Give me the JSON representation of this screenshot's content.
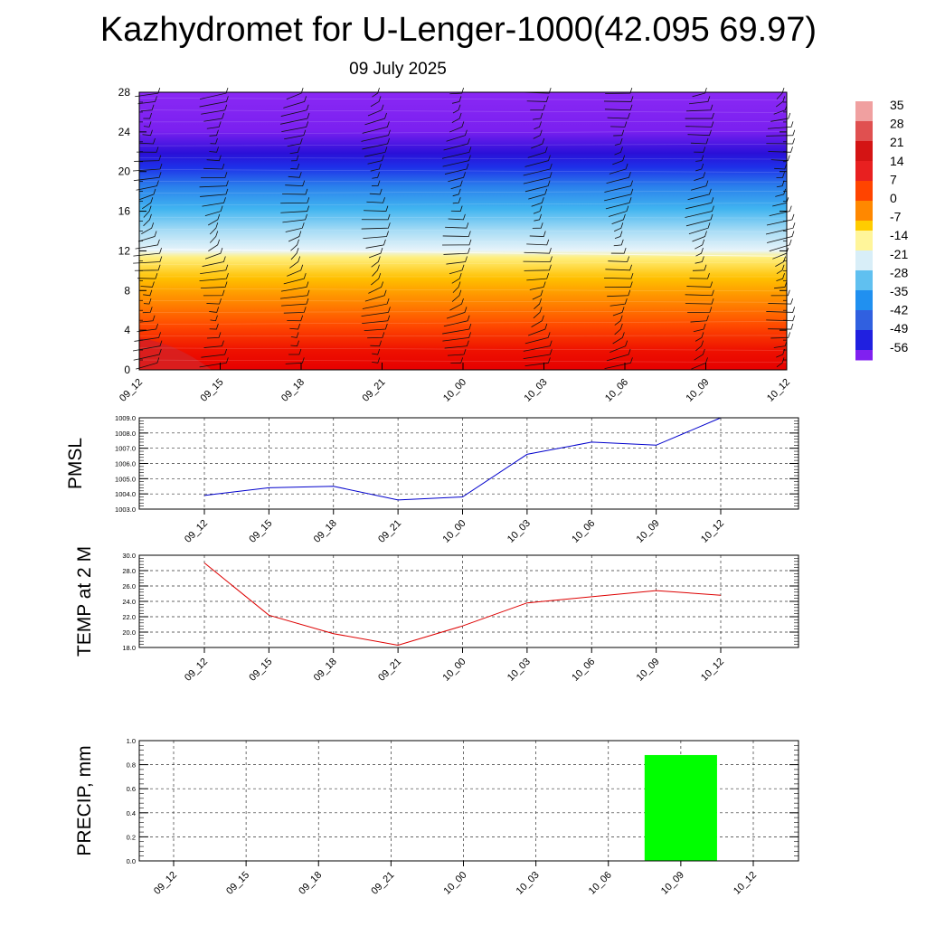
{
  "title": "Kazhydromet for U-Lenger-1000(42.095 69.97)",
  "subtitle": "09 July 2025",
  "time_labels": [
    "09_12",
    "09_15",
    "09_18",
    "09_21",
    "10_00",
    "10_03",
    "10_06",
    "10_09",
    "10_12"
  ],
  "colorbar": {
    "labels": [
      "35",
      "28",
      "21",
      "14",
      "7",
      "0",
      "-7",
      "-14",
      "-21",
      "-28",
      "-35",
      "-42",
      "-49",
      "-56"
    ],
    "colors": [
      "#f0a0a0",
      "#e05050",
      "#d41414",
      "#e82020",
      "#ff4400",
      "#ff8800",
      "#ffcc00",
      "#fff59a",
      "#d8eef8",
      "#60c0f0",
      "#2090f0",
      "#3060e0",
      "#2020e0",
      "#8020f0"
    ]
  },
  "chart_data": [
    {
      "type": "heatmap",
      "title": "",
      "xlabel": "",
      "ylabel": "",
      "x": [
        "09_12",
        "09_15",
        "09_18",
        "09_21",
        "10_00",
        "10_03",
        "10_06",
        "10_09",
        "10_12"
      ],
      "y_ticks": [
        0,
        4,
        8,
        12,
        16,
        20,
        24,
        28
      ],
      "ylim": [
        0,
        28
      ],
      "value_range": [
        -56,
        35
      ],
      "freezing_level": 12
    },
    {
      "type": "line",
      "ylabel": "PMSL",
      "x": [
        "09_12",
        "09_15",
        "09_18",
        "09_21",
        "10_00",
        "10_03",
        "10_06",
        "10_09",
        "10_12"
      ],
      "values": [
        1003.9,
        1004.4,
        1004.5,
        1003.6,
        1003.8,
        1006.6,
        1007.4,
        1007.2,
        1009.0
      ],
      "ylim": [
        1003.0,
        1009.0
      ],
      "y_ticks": [
        "1003.0",
        "1004.0",
        "1005.0",
        "1006.0",
        "1007.0",
        "1008.0",
        "1009.0"
      ],
      "color": "#0000cc",
      "grid": true
    },
    {
      "type": "line",
      "ylabel": "TEMP at 2 M",
      "x": [
        "09_12",
        "09_15",
        "09_18",
        "09_21",
        "10_00",
        "10_03",
        "10_06",
        "10_09",
        "10_12"
      ],
      "values": [
        29.0,
        22.2,
        19.8,
        18.3,
        20.8,
        23.8,
        24.6,
        25.4,
        24.8
      ],
      "ylim": [
        18.0,
        30.0
      ],
      "y_ticks": [
        "18.0",
        "20.0",
        "22.0",
        "24.0",
        "26.0",
        "28.0",
        "30.0"
      ],
      "color": "#dd0000",
      "grid": true
    },
    {
      "type": "bar",
      "ylabel": "PRECIP, mm",
      "categories": [
        "09_12",
        "09_15",
        "09_18",
        "09_21",
        "10_00",
        "10_03",
        "10_06",
        "10_09",
        "10_12"
      ],
      "values": [
        0,
        0,
        0,
        0,
        0,
        0,
        0,
        0.88,
        0
      ],
      "ylim": [
        0,
        1.0
      ],
      "y_ticks": [
        "0.0",
        "0.2",
        "0.4",
        "0.6",
        "0.8",
        "1.0"
      ],
      "color": "#00ff00",
      "grid": true
    }
  ]
}
